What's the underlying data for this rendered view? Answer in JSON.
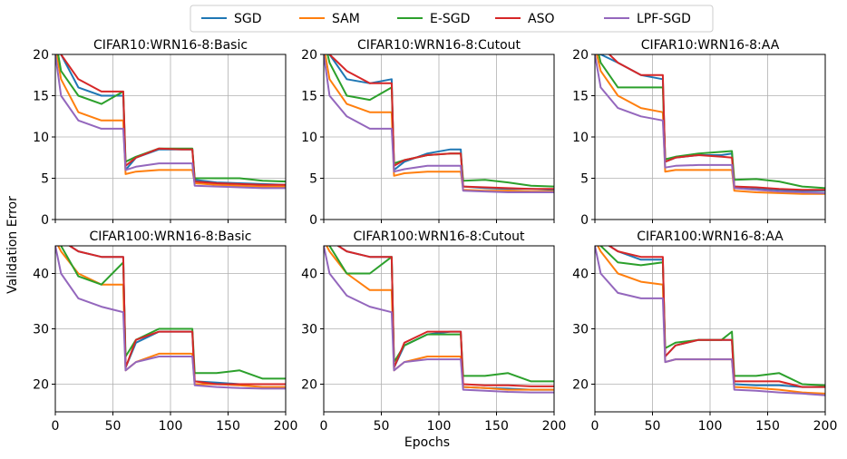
{
  "legend": {
    "items": [
      {
        "name": "SGD",
        "color": "#1f77b4"
      },
      {
        "name": "SAM",
        "color": "#ff7f0e"
      },
      {
        "name": "E-SGD",
        "color": "#2ca02c"
      },
      {
        "name": "ASO",
        "color": "#d62728"
      },
      {
        "name": "LPF-SGD",
        "color": "#9467bd"
      }
    ]
  },
  "shared_ylabel": "Validation Error",
  "shared_xlabel": "Epochs",
  "chart_data": [
    {
      "type": "line",
      "title": "CIFAR10:WRN16-8:Basic",
      "xlim": [
        0,
        200
      ],
      "ylim": [
        0,
        20
      ],
      "xticks": [
        0,
        50,
        100,
        150,
        200
      ],
      "yticks": [
        0,
        5,
        10,
        15,
        20
      ],
      "grid": true,
      "legend_placement": "top-center (shared)",
      "x": [
        0,
        5,
        20,
        40,
        59,
        61,
        70,
        90,
        110,
        119,
        121,
        140,
        160,
        180,
        200
      ],
      "series": [
        {
          "name": "SGD",
          "values": [
            22,
            20,
            16,
            15,
            15,
            6,
            7.5,
            8.5,
            8.5,
            8.5,
            4.8,
            4.5,
            4.4,
            4.3,
            4.2
          ]
        },
        {
          "name": "SAM",
          "values": [
            21,
            17,
            13,
            12,
            12,
            5.5,
            5.8,
            6,
            6,
            6,
            4.4,
            4.2,
            4.1,
            4,
            4
          ]
        },
        {
          "name": "E-SGD",
          "values": [
            22,
            18,
            15,
            14,
            15.5,
            7,
            7.6,
            8.6,
            8.6,
            8.6,
            5,
            5,
            5,
            4.7,
            4.6
          ]
        },
        {
          "name": "ASO",
          "values": [
            22,
            20,
            17,
            15.5,
            15.5,
            6.5,
            7.5,
            8.6,
            8.5,
            8.5,
            4.6,
            4.4,
            4.3,
            4.2,
            4.2
          ]
        },
        {
          "name": "LPF-SGD",
          "values": [
            20,
            15,
            12,
            11,
            11,
            6,
            6.4,
            6.8,
            6.8,
            6.8,
            4.1,
            4,
            3.9,
            3.8,
            3.8
          ]
        }
      ]
    },
    {
      "type": "line",
      "title": "CIFAR10:WRN16-8:Cutout",
      "xlim": [
        0,
        200
      ],
      "ylim": [
        0,
        20
      ],
      "xticks": [
        0,
        50,
        100,
        150,
        200
      ],
      "yticks": [
        0,
        5,
        10,
        15,
        20
      ],
      "grid": true,
      "x": [
        0,
        5,
        20,
        40,
        59,
        61,
        70,
        90,
        110,
        119,
        121,
        140,
        160,
        180,
        200
      ],
      "series": [
        {
          "name": "SGD",
          "values": [
            22,
            20,
            17,
            16.5,
            17,
            6,
            7,
            8,
            8.5,
            8.5,
            4,
            3.8,
            3.7,
            3.7,
            3.6
          ]
        },
        {
          "name": "SAM",
          "values": [
            21,
            17,
            14,
            13,
            13,
            5.3,
            5.6,
            5.8,
            5.8,
            5.8,
            3.6,
            3.5,
            3.5,
            3.4,
            3.4
          ]
        },
        {
          "name": "E-SGD",
          "values": [
            22,
            19,
            15,
            14.5,
            16,
            6.8,
            7.2,
            7.8,
            8,
            8,
            4.7,
            4.8,
            4.5,
            4.1,
            4
          ]
        },
        {
          "name": "ASO",
          "values": [
            22,
            20,
            18,
            16.5,
            16.5,
            6.5,
            7.2,
            7.8,
            8,
            8,
            4,
            3.9,
            3.8,
            3.7,
            3.7
          ]
        },
        {
          "name": "LPF-SGD",
          "values": [
            20,
            15,
            12.5,
            11,
            11,
            5.8,
            6.1,
            6.5,
            6.5,
            6.5,
            3.5,
            3.4,
            3.3,
            3.3,
            3.3
          ]
        }
      ]
    },
    {
      "type": "line",
      "title": "CIFAR10:WRN16-8:AA",
      "xlim": [
        0,
        200
      ],
      "ylim": [
        0,
        20
      ],
      "xticks": [
        0,
        50,
        100,
        150,
        200
      ],
      "yticks": [
        0,
        5,
        10,
        15,
        20
      ],
      "grid": true,
      "x": [
        0,
        5,
        20,
        40,
        59,
        61,
        70,
        90,
        110,
        119,
        121,
        140,
        160,
        180,
        200
      ],
      "series": [
        {
          "name": "SGD",
          "values": [
            22,
            20,
            19,
            17.5,
            17,
            7,
            7.5,
            7.8,
            7.8,
            8,
            4,
            3.8,
            3.6,
            3.5,
            3.5
          ]
        },
        {
          "name": "SAM",
          "values": [
            21,
            18,
            15,
            13.5,
            13,
            5.8,
            6,
            6,
            6,
            6,
            3.5,
            3.3,
            3.2,
            3.1,
            3.1
          ]
        },
        {
          "name": "E-SGD",
          "values": [
            22,
            19,
            16,
            16,
            16,
            7.3,
            7.6,
            8,
            8.2,
            8.3,
            4.8,
            4.9,
            4.6,
            4,
            3.8
          ]
        },
        {
          "name": "ASO",
          "values": [
            22,
            21,
            19,
            17.5,
            17.5,
            7,
            7.5,
            7.8,
            7.6,
            7.5,
            4,
            3.9,
            3.7,
            3.6,
            3.6
          ]
        },
        {
          "name": "LPF-SGD",
          "values": [
            20,
            16,
            13.5,
            12.5,
            12,
            6.3,
            6.5,
            6.6,
            6.6,
            6.6,
            3.8,
            3.6,
            3.4,
            3.3,
            3.2
          ]
        }
      ]
    },
    {
      "type": "line",
      "title": "CIFAR100:WRN16-8:Basic",
      "xlim": [
        0,
        200
      ],
      "ylim": [
        15,
        45
      ],
      "xticks": [
        0,
        50,
        100,
        150,
        200
      ],
      "yticks": [
        20,
        30,
        40
      ],
      "grid": true,
      "x": [
        0,
        5,
        20,
        40,
        59,
        61,
        70,
        90,
        110,
        119,
        121,
        140,
        160,
        180,
        200
      ],
      "series": [
        {
          "name": "SGD",
          "values": [
            48,
            46,
            44,
            43,
            43,
            23,
            27.5,
            29.5,
            29.5,
            29.5,
            20.5,
            20.3,
            20,
            20,
            20
          ]
        },
        {
          "name": "SAM",
          "values": [
            46,
            44,
            40,
            38,
            38,
            22.5,
            24,
            25.5,
            25.5,
            25.5,
            20,
            20,
            19.8,
            19.5,
            19.5
          ]
        },
        {
          "name": "E-SGD",
          "values": [
            48,
            45,
            39.5,
            38,
            42,
            25,
            28,
            30,
            30,
            30,
            22,
            22,
            22.5,
            21,
            21
          ]
        },
        {
          "name": "ASO",
          "values": [
            48,
            46,
            44,
            43,
            43,
            23,
            28,
            29.5,
            29.5,
            29.5,
            20.5,
            20,
            20,
            20,
            20
          ]
        },
        {
          "name": "LPF-SGD",
          "values": [
            45,
            40,
            35.5,
            34,
            33,
            22.5,
            24,
            25,
            25,
            25,
            19.8,
            19.5,
            19.3,
            19.2,
            19.2
          ]
        }
      ]
    },
    {
      "type": "line",
      "title": "CIFAR100:WRN16-8:Cutout",
      "xlim": [
        0,
        200
      ],
      "ylim": [
        15,
        45
      ],
      "xticks": [
        0,
        50,
        100,
        150,
        200
      ],
      "yticks": [
        20,
        30,
        40
      ],
      "grid": true,
      "x": [
        0,
        5,
        20,
        40,
        59,
        61,
        70,
        90,
        110,
        119,
        121,
        140,
        160,
        180,
        200
      ],
      "series": [
        {
          "name": "SGD",
          "values": [
            48,
            46,
            44,
            43,
            43,
            23,
            27,
            29,
            29.5,
            29.5,
            19.5,
            19.3,
            19.2,
            19,
            19
          ]
        },
        {
          "name": "SAM",
          "values": [
            46,
            44,
            40,
            37,
            37,
            22.5,
            24,
            25,
            25,
            25,
            19.5,
            19.3,
            19,
            19,
            19
          ]
        },
        {
          "name": "E-SGD",
          "values": [
            48,
            45,
            40,
            40,
            43,
            24,
            27,
            29,
            29,
            29,
            21.5,
            21.5,
            22,
            20.5,
            20.5
          ]
        },
        {
          "name": "ASO",
          "values": [
            48,
            46,
            44,
            43,
            43,
            23,
            27.5,
            29.5,
            29.5,
            29.5,
            20,
            19.8,
            19.8,
            19.6,
            19.6
          ]
        },
        {
          "name": "LPF-SGD",
          "values": [
            45,
            40,
            36,
            34,
            33,
            22.5,
            24,
            24.5,
            24.5,
            24.5,
            19,
            18.8,
            18.6,
            18.5,
            18.5
          ]
        }
      ]
    },
    {
      "type": "line",
      "title": "CIFAR100:WRN16-8:AA",
      "xlim": [
        0,
        200
      ],
      "ylim": [
        15,
        45
      ],
      "xticks": [
        0,
        50,
        100,
        150,
        200
      ],
      "yticks": [
        20,
        30,
        40
      ],
      "grid": true,
      "x": [
        0,
        5,
        20,
        40,
        59,
        61,
        70,
        90,
        110,
        119,
        121,
        140,
        160,
        180,
        200
      ],
      "series": [
        {
          "name": "SGD",
          "values": [
            48,
            46,
            44,
            42.5,
            42.5,
            25,
            27,
            28,
            28,
            28,
            20,
            19.8,
            19.8,
            19.5,
            19.5
          ]
        },
        {
          "name": "SAM",
          "values": [
            46,
            44,
            40,
            38.5,
            38,
            24,
            24.5,
            24.5,
            24.5,
            24.5,
            19.5,
            19.3,
            19,
            18.5,
            18.3
          ]
        },
        {
          "name": "E-SGD",
          "values": [
            48,
            45,
            42,
            41.5,
            42,
            26.5,
            27.5,
            28,
            28,
            29.5,
            21.5,
            21.5,
            22,
            20,
            19.8
          ]
        },
        {
          "name": "ASO",
          "values": [
            48,
            46,
            44,
            43,
            43,
            25,
            27,
            28,
            28,
            28,
            20.5,
            20.5,
            20.5,
            19.5,
            19.5
          ]
        },
        {
          "name": "LPF-SGD",
          "values": [
            45,
            40,
            36.5,
            35.5,
            35.5,
            24,
            24.5,
            24.5,
            24.5,
            24.5,
            19,
            18.8,
            18.5,
            18.3,
            18
          ]
        }
      ]
    }
  ]
}
